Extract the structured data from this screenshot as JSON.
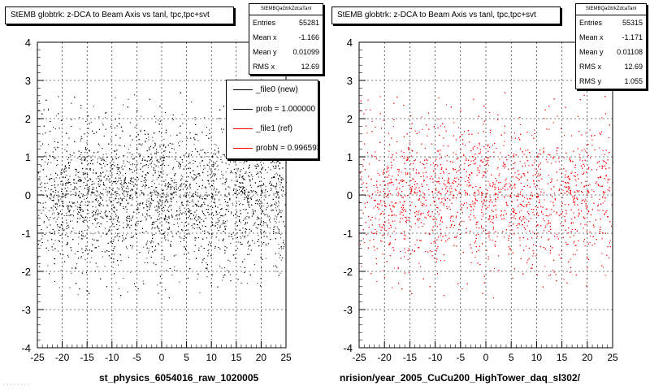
{
  "panels": [
    {
      "title": "StEMB globtrk: z-DCA to Beam Axis vs tanl, tpc,tpc+svt",
      "stats_name": "StEMBQaGtrkZdcaTanl",
      "stats": [
        {
          "label": "Entries",
          "value": "55281"
        },
        {
          "label": "Mean x",
          "value": "-1.166"
        },
        {
          "label": "Mean y",
          "value": "0.01099"
        },
        {
          "label": "RMS x",
          "value": "12.69"
        }
      ],
      "xaxis_title": "st_physics_6054016_raw_1020005",
      "color": "#000000"
    },
    {
      "title": "StEMB globtrk: z-DCA to Beam Axis vs tanl, tpc,tpc+svt",
      "stats_name": "StEMBQaGtrkZdcaTanl",
      "stats": [
        {
          "label": "Entries",
          "value": "55315"
        },
        {
          "label": "Mean x",
          "value": "-1.171"
        },
        {
          "label": "Mean y",
          "value": "0.01108"
        },
        {
          "label": "RMS x",
          "value": "12.69"
        },
        {
          "label": "RMS y",
          "value": "1.055"
        }
      ],
      "xaxis_title": "nrision/year_2005_CuCu200_HighTower_daq_sl302/",
      "color": "#ff0000"
    }
  ],
  "legend": [
    {
      "label": "_file0 (new)",
      "color": "#000000"
    },
    {
      "label": "prob = 1.000000",
      "color": "#000000"
    },
    {
      "label": "_file1 (ref)",
      "color": "#ff0000"
    },
    {
      "label": "probN = 0.996593",
      "color": "#ff0000"
    }
  ],
  "footer_text": "· · · · · · · ·",
  "chart_data": [
    {
      "type": "scatter",
      "title": "StEMB globtrk: z-DCA to Beam Axis vs tanl, tpc,tpc+svt",
      "xlabel": "st_physics_6054016_raw_1020005",
      "ylabel": "",
      "xlim": [
        -25,
        25
      ],
      "ylim": [
        -4,
        4
      ],
      "xticks": [
        -25,
        -20,
        -15,
        -10,
        -5,
        0,
        5,
        10,
        15,
        20,
        25
      ],
      "yticks": [
        -4,
        -3,
        -2,
        -1,
        0,
        1,
        2,
        3,
        4
      ],
      "grid": true,
      "entries": 55281,
      "mean_x": -1.166,
      "mean_y": 0.01099,
      "rms_x": 12.69,
      "color": "#000000"
    },
    {
      "type": "scatter",
      "title": "StEMB globtrk: z-DCA to Beam Axis vs tanl, tpc,tpc+svt",
      "xlabel": "nrision/year_2005_CuCu200_HighTower_daq_sl302/",
      "ylabel": "",
      "xlim": [
        -25,
        25
      ],
      "ylim": [
        -4,
        4
      ],
      "xticks": [
        -25,
        -20,
        -15,
        -10,
        -5,
        0,
        5,
        10,
        15,
        20,
        25
      ],
      "yticks": [
        -4,
        -3,
        -2,
        -1,
        0,
        1,
        2,
        3,
        4
      ],
      "grid": true,
      "entries": 55315,
      "mean_x": -1.171,
      "mean_y": 0.01108,
      "rms_x": 12.69,
      "rms_y": 1.055,
      "color": "#ff0000"
    }
  ]
}
